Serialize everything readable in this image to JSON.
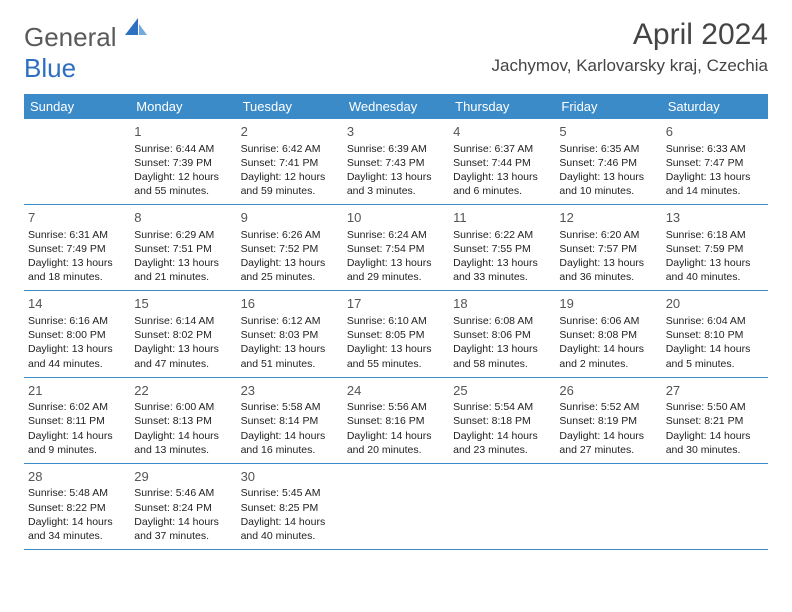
{
  "logo": {
    "word1": "General",
    "word2": "Blue"
  },
  "title": "April 2024",
  "location": "Jachymov, Karlovarsky kraj, Czechia",
  "days_of_week": [
    "Sunday",
    "Monday",
    "Tuesday",
    "Wednesday",
    "Thursday",
    "Friday",
    "Saturday"
  ],
  "header_bg": "#3b8bc9",
  "header_fg": "#ffffff",
  "border_color": "#3b8bc9",
  "weeks": [
    [
      null,
      {
        "d": "1",
        "sr": "Sunrise: 6:44 AM",
        "ss": "Sunset: 7:39 PM",
        "dl1": "Daylight: 12 hours",
        "dl2": "and 55 minutes."
      },
      {
        "d": "2",
        "sr": "Sunrise: 6:42 AM",
        "ss": "Sunset: 7:41 PM",
        "dl1": "Daylight: 12 hours",
        "dl2": "and 59 minutes."
      },
      {
        "d": "3",
        "sr": "Sunrise: 6:39 AM",
        "ss": "Sunset: 7:43 PM",
        "dl1": "Daylight: 13 hours",
        "dl2": "and 3 minutes."
      },
      {
        "d": "4",
        "sr": "Sunrise: 6:37 AM",
        "ss": "Sunset: 7:44 PM",
        "dl1": "Daylight: 13 hours",
        "dl2": "and 6 minutes."
      },
      {
        "d": "5",
        "sr": "Sunrise: 6:35 AM",
        "ss": "Sunset: 7:46 PM",
        "dl1": "Daylight: 13 hours",
        "dl2": "and 10 minutes."
      },
      {
        "d": "6",
        "sr": "Sunrise: 6:33 AM",
        "ss": "Sunset: 7:47 PM",
        "dl1": "Daylight: 13 hours",
        "dl2": "and 14 minutes."
      }
    ],
    [
      {
        "d": "7",
        "sr": "Sunrise: 6:31 AM",
        "ss": "Sunset: 7:49 PM",
        "dl1": "Daylight: 13 hours",
        "dl2": "and 18 minutes."
      },
      {
        "d": "8",
        "sr": "Sunrise: 6:29 AM",
        "ss": "Sunset: 7:51 PM",
        "dl1": "Daylight: 13 hours",
        "dl2": "and 21 minutes."
      },
      {
        "d": "9",
        "sr": "Sunrise: 6:26 AM",
        "ss": "Sunset: 7:52 PM",
        "dl1": "Daylight: 13 hours",
        "dl2": "and 25 minutes."
      },
      {
        "d": "10",
        "sr": "Sunrise: 6:24 AM",
        "ss": "Sunset: 7:54 PM",
        "dl1": "Daylight: 13 hours",
        "dl2": "and 29 minutes."
      },
      {
        "d": "11",
        "sr": "Sunrise: 6:22 AM",
        "ss": "Sunset: 7:55 PM",
        "dl1": "Daylight: 13 hours",
        "dl2": "and 33 minutes."
      },
      {
        "d": "12",
        "sr": "Sunrise: 6:20 AM",
        "ss": "Sunset: 7:57 PM",
        "dl1": "Daylight: 13 hours",
        "dl2": "and 36 minutes."
      },
      {
        "d": "13",
        "sr": "Sunrise: 6:18 AM",
        "ss": "Sunset: 7:59 PM",
        "dl1": "Daylight: 13 hours",
        "dl2": "and 40 minutes."
      }
    ],
    [
      {
        "d": "14",
        "sr": "Sunrise: 6:16 AM",
        "ss": "Sunset: 8:00 PM",
        "dl1": "Daylight: 13 hours",
        "dl2": "and 44 minutes."
      },
      {
        "d": "15",
        "sr": "Sunrise: 6:14 AM",
        "ss": "Sunset: 8:02 PM",
        "dl1": "Daylight: 13 hours",
        "dl2": "and 47 minutes."
      },
      {
        "d": "16",
        "sr": "Sunrise: 6:12 AM",
        "ss": "Sunset: 8:03 PM",
        "dl1": "Daylight: 13 hours",
        "dl2": "and 51 minutes."
      },
      {
        "d": "17",
        "sr": "Sunrise: 6:10 AM",
        "ss": "Sunset: 8:05 PM",
        "dl1": "Daylight: 13 hours",
        "dl2": "and 55 minutes."
      },
      {
        "d": "18",
        "sr": "Sunrise: 6:08 AM",
        "ss": "Sunset: 8:06 PM",
        "dl1": "Daylight: 13 hours",
        "dl2": "and 58 minutes."
      },
      {
        "d": "19",
        "sr": "Sunrise: 6:06 AM",
        "ss": "Sunset: 8:08 PM",
        "dl1": "Daylight: 14 hours",
        "dl2": "and 2 minutes."
      },
      {
        "d": "20",
        "sr": "Sunrise: 6:04 AM",
        "ss": "Sunset: 8:10 PM",
        "dl1": "Daylight: 14 hours",
        "dl2": "and 5 minutes."
      }
    ],
    [
      {
        "d": "21",
        "sr": "Sunrise: 6:02 AM",
        "ss": "Sunset: 8:11 PM",
        "dl1": "Daylight: 14 hours",
        "dl2": "and 9 minutes."
      },
      {
        "d": "22",
        "sr": "Sunrise: 6:00 AM",
        "ss": "Sunset: 8:13 PM",
        "dl1": "Daylight: 14 hours",
        "dl2": "and 13 minutes."
      },
      {
        "d": "23",
        "sr": "Sunrise: 5:58 AM",
        "ss": "Sunset: 8:14 PM",
        "dl1": "Daylight: 14 hours",
        "dl2": "and 16 minutes."
      },
      {
        "d": "24",
        "sr": "Sunrise: 5:56 AM",
        "ss": "Sunset: 8:16 PM",
        "dl1": "Daylight: 14 hours",
        "dl2": "and 20 minutes."
      },
      {
        "d": "25",
        "sr": "Sunrise: 5:54 AM",
        "ss": "Sunset: 8:18 PM",
        "dl1": "Daylight: 14 hours",
        "dl2": "and 23 minutes."
      },
      {
        "d": "26",
        "sr": "Sunrise: 5:52 AM",
        "ss": "Sunset: 8:19 PM",
        "dl1": "Daylight: 14 hours",
        "dl2": "and 27 minutes."
      },
      {
        "d": "27",
        "sr": "Sunrise: 5:50 AM",
        "ss": "Sunset: 8:21 PM",
        "dl1": "Daylight: 14 hours",
        "dl2": "and 30 minutes."
      }
    ],
    [
      {
        "d": "28",
        "sr": "Sunrise: 5:48 AM",
        "ss": "Sunset: 8:22 PM",
        "dl1": "Daylight: 14 hours",
        "dl2": "and 34 minutes."
      },
      {
        "d": "29",
        "sr": "Sunrise: 5:46 AM",
        "ss": "Sunset: 8:24 PM",
        "dl1": "Daylight: 14 hours",
        "dl2": "and 37 minutes."
      },
      {
        "d": "30",
        "sr": "Sunrise: 5:45 AM",
        "ss": "Sunset: 8:25 PM",
        "dl1": "Daylight: 14 hours",
        "dl2": "and 40 minutes."
      },
      null,
      null,
      null,
      null
    ]
  ]
}
